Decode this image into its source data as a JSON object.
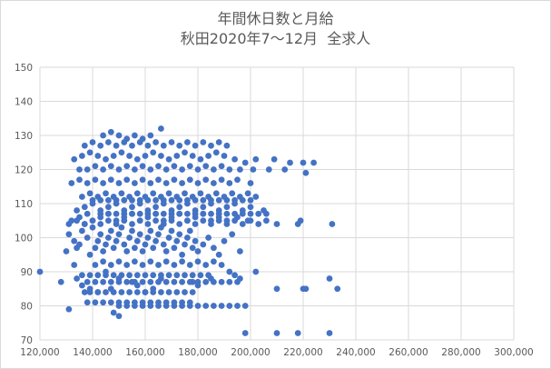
{
  "chart_data": {
    "type": "scatter",
    "title": "年間休日数と月給",
    "subtitle": "秋田2020年7～12月  全求人",
    "xlabel": "",
    "ylabel": "",
    "xlim": [
      120000,
      300000
    ],
    "ylim": [
      70,
      150
    ],
    "x_ticks": [
      "120,000",
      "140,000",
      "160,000",
      "180,000",
      "200,000",
      "220,000",
      "240,000",
      "260,000",
      "280,000",
      "300,000"
    ],
    "y_ticks": [
      "70",
      "80",
      "90",
      "100",
      "110",
      "120",
      "130",
      "140",
      "150"
    ],
    "grid": true,
    "legend": "none",
    "marker_color": "#4472c4",
    "x": [
      120000,
      128000,
      131000,
      133000,
      134000,
      136000,
      137000,
      139000,
      142000,
      145000,
      147000,
      148000,
      150000,
      150000,
      155000,
      157000,
      160000,
      163000,
      166000,
      178000,
      180000,
      185000,
      192000,
      194000,
      196000,
      202000,
      221000,
      130000,
      131000,
      133000,
      134000,
      135000,
      136000,
      137000,
      138000,
      139000,
      140000,
      141000,
      142000,
      143000,
      144000,
      145000,
      146000,
      147000,
      148000,
      149000,
      150000,
      151000,
      152000,
      153000,
      154000,
      155000,
      156000,
      157000,
      158000,
      159000,
      160000,
      161000,
      162000,
      163000,
      164000,
      165000,
      166000,
      167000,
      168000,
      169000,
      170000,
      171000,
      172000,
      173000,
      174000,
      175000,
      176000,
      177000,
      178000,
      179000,
      180000,
      182000,
      184000,
      186000,
      188000,
      190000,
      193000,
      196000,
      132000,
      135000,
      138000,
      140000,
      143000,
      146000,
      149000,
      152000,
      155000,
      158000,
      161000,
      164000,
      167000,
      170000,
      173000,
      176000,
      179000,
      182000,
      185000,
      188000,
      191000,
      195000,
      199000,
      134000,
      137000,
      140000,
      143000,
      146000,
      149000,
      152000,
      155000,
      158000,
      161000,
      164000,
      167000,
      170000,
      173000,
      176000,
      179000,
      182000,
      185000,
      188000,
      191000,
      194000,
      197000,
      200000,
      205000,
      131000,
      134000,
      137000,
      140000,
      143000,
      146000,
      149000,
      152000,
      155000,
      158000,
      161000,
      164000,
      167000,
      170000,
      173000,
      176000,
      179000,
      182000,
      185000,
      188000,
      191000,
      194000,
      197000,
      200000,
      203000,
      206000,
      210000,
      218000,
      219000,
      231000,
      136000,
      139000,
      142000,
      145000,
      148000,
      151000,
      154000,
      157000,
      160000,
      163000,
      166000,
      169000,
      172000,
      175000,
      178000,
      181000,
      184000,
      187000,
      190000,
      193000,
      196000,
      199000,
      202000,
      132000,
      135000,
      138000,
      141000,
      144000,
      147000,
      150000,
      153000,
      156000,
      159000,
      162000,
      165000,
      168000,
      171000,
      174000,
      177000,
      180000,
      183000,
      186000,
      189000,
      192000,
      195000,
      200000,
      135000,
      138000,
      141000,
      144000,
      147000,
      150000,
      153000,
      156000,
      159000,
      162000,
      165000,
      168000,
      171000,
      174000,
      177000,
      180000,
      183000,
      186000,
      189000,
      192000,
      196000,
      201000,
      207000,
      213000,
      221000,
      133000,
      136000,
      139000,
      142000,
      145000,
      148000,
      151000,
      154000,
      157000,
      160000,
      163000,
      166000,
      169000,
      172000,
      175000,
      178000,
      181000,
      184000,
      187000,
      190000,
      194000,
      198000,
      202000,
      209000,
      215000,
      220000,
      224000,
      137000,
      140000,
      143000,
      146000,
      149000,
      152000,
      155000,
      158000,
      161000,
      164000,
      167000,
      170000,
      173000,
      176000,
      179000,
      182000,
      185000,
      188000,
      191000,
      141000,
      144000,
      147000,
      150000,
      153000,
      156000,
      159000,
      162000,
      165000,
      168000,
      171000,
      174000,
      177000,
      180000,
      183000,
      186000,
      189000,
      144000,
      147000,
      150000,
      153000,
      156000,
      159000,
      162000,
      166000,
      138000,
      141000,
      144000,
      147000,
      150000,
      153000,
      156000,
      159000,
      162000,
      165000,
      168000,
      171000,
      174000,
      177000,
      180000,
      183000,
      186000,
      189000,
      192000,
      195000,
      136000,
      139000,
      142000,
      145000,
      148000,
      151000,
      154000,
      157000,
      160000,
      163000,
      166000,
      169000,
      172000,
      175000,
      178000,
      181000,
      184000,
      139000,
      142000,
      145000,
      148000,
      151000,
      154000,
      157000,
      160000,
      163000,
      166000,
      169000,
      172000,
      175000,
      178000,
      138000,
      141000,
      144000,
      147000,
      150000,
      153000,
      156000,
      159000,
      162000,
      165000,
      168000,
      171000,
      174000,
      177000,
      150000,
      153000,
      156000,
      159000,
      162000,
      165000,
      168000,
      171000,
      174000,
      177000,
      180000,
      183000,
      186000,
      189000,
      192000,
      195000,
      198000,
      140000,
      143000,
      146000,
      149000,
      152000,
      155000,
      158000,
      161000,
      164000,
      167000,
      170000,
      173000,
      176000,
      179000,
      182000,
      185000,
      188000,
      191000,
      194000,
      197000,
      200000,
      143000,
      146000,
      149000,
      152000,
      155000,
      158000,
      161000,
      164000,
      167000,
      170000,
      173000,
      176000,
      179000,
      182000,
      185000,
      188000,
      191000,
      194000,
      197000,
      200000,
      203000,
      206000,
      210000,
      220000,
      230000,
      233000,
      198000,
      210000,
      218000,
      230000
    ],
    "y": [
      90,
      87,
      79,
      92,
      88,
      86,
      84,
      85,
      84,
      90,
      85,
      78,
      77,
      88,
      87,
      86,
      84,
      85,
      88,
      87,
      86,
      88,
      90,
      89,
      88,
      90,
      85,
      96,
      101,
      99,
      97,
      98,
      102,
      104,
      100,
      95,
      103,
      97,
      99,
      101,
      96,
      98,
      100,
      102,
      97,
      99,
      101,
      103,
      98,
      96,
      100,
      102,
      97,
      99,
      101,
      96,
      98,
      100,
      102,
      97,
      99,
      101,
      103,
      98,
      96,
      100,
      102,
      97,
      99,
      101,
      95,
      98,
      100,
      102,
      97,
      99,
      96,
      98,
      100,
      97,
      95,
      99,
      101,
      96,
      105,
      106,
      107,
      105,
      106,
      107,
      105,
      106,
      107,
      105,
      106,
      107,
      105,
      106,
      107,
      105,
      106,
      107,
      105,
      106,
      105,
      106,
      105,
      108,
      109,
      110,
      108,
      109,
      110,
      108,
      109,
      110,
      108,
      109,
      110,
      108,
      109,
      110,
      108,
      109,
      110,
      108,
      109,
      110,
      108,
      109,
      108,
      104,
      105,
      104,
      105,
      104,
      105,
      104,
      105,
      104,
      105,
      104,
      105,
      104,
      105,
      104,
      105,
      104,
      105,
      104,
      105,
      104,
      105,
      104,
      105,
      104,
      105,
      104,
      104,
      105,
      104,
      112,
      113,
      112,
      113,
      112,
      113,
      112,
      113,
      112,
      113,
      112,
      113,
      112,
      113,
      112,
      113,
      112,
      113,
      112,
      113,
      112,
      113,
      112,
      116,
      117,
      116,
      117,
      116,
      117,
      116,
      117,
      116,
      117,
      116,
      117,
      116,
      117,
      116,
      117,
      116,
      117,
      116,
      117,
      116,
      117,
      116,
      120,
      120,
      121,
      120,
      121,
      120,
      121,
      120,
      121,
      120,
      121,
      120,
      121,
      120,
      121,
      120,
      121,
      120,
      121,
      120,
      120,
      120,
      120,
      120,
      119,
      123,
      124,
      125,
      124,
      123,
      124,
      125,
      124,
      123,
      124,
      125,
      124,
      123,
      124,
      125,
      124,
      123,
      124,
      125,
      124,
      123,
      122,
      123,
      123,
      122,
      122,
      122,
      127,
      128,
      127,
      128,
      127,
      128,
      127,
      128,
      127,
      128,
      127,
      128,
      127,
      128,
      127,
      128,
      127,
      128,
      127,
      92,
      93,
      92,
      93,
      92,
      93,
      92,
      93,
      92,
      93,
      92,
      93,
      92,
      93,
      92,
      93,
      92,
      130,
      131,
      130,
      129,
      130,
      129,
      130,
      132,
      87,
      87,
      87,
      87,
      87,
      87,
      87,
      87,
      87,
      87,
      87,
      87,
      87,
      87,
      87,
      87,
      87,
      87,
      87,
      87,
      89,
      89,
      89,
      89,
      89,
      89,
      89,
      89,
      89,
      89,
      89,
      89,
      89,
      89,
      89,
      89,
      89,
      84,
      84,
      84,
      84,
      84,
      84,
      84,
      84,
      84,
      84,
      84,
      84,
      84,
      84,
      81,
      81,
      81,
      81,
      81,
      81,
      81,
      81,
      81,
      81,
      81,
      81,
      81,
      81,
      80,
      80,
      80,
      80,
      80,
      80,
      80,
      80,
      80,
      80,
      80,
      80,
      80,
      80,
      80,
      80,
      80,
      111,
      111,
      111,
      111,
      111,
      111,
      111,
      111,
      111,
      111,
      111,
      111,
      111,
      111,
      111,
      111,
      111,
      111,
      111,
      111,
      111,
      107,
      107,
      107,
      107,
      107,
      107,
      107,
      107,
      107,
      107,
      107,
      107,
      107,
      107,
      107,
      107,
      107,
      107,
      107,
      107,
      107,
      107,
      85,
      85,
      88,
      85,
      72,
      72,
      72,
      72
    ]
  }
}
